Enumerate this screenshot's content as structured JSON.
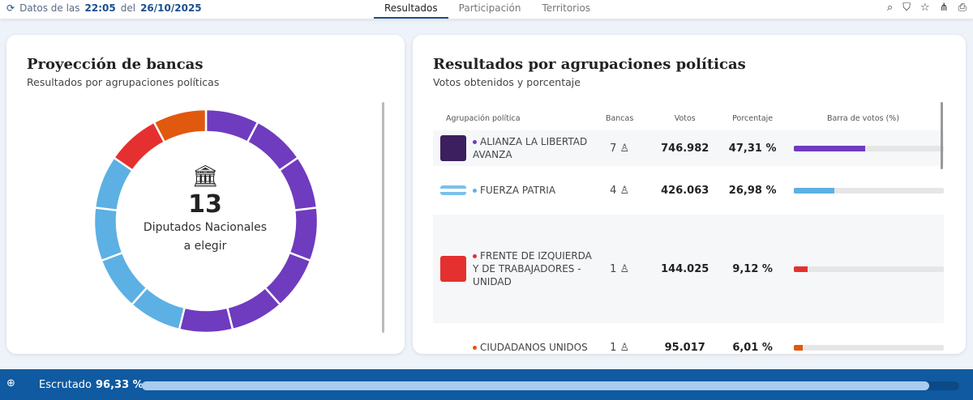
{
  "header": {
    "prefix": "Datos de las",
    "time": "22:05",
    "mid": "del",
    "date": "26/10/2025",
    "tabs": [
      "Resultados",
      "Participación",
      "Territorios"
    ]
  },
  "projection": {
    "title": "Proyección de bancas",
    "subtitle": "Resultados por agrupaciones políticas",
    "total": "13",
    "label1": "Diputados Nacionales",
    "label2": "a elegir"
  },
  "results": {
    "title": "Resultados por agrupaciones políticas",
    "subtitle": "Votos obtenidos y porcentaje",
    "columns": [
      "Agrupación política",
      "Bancas",
      "Votos",
      "Porcentaje",
      "Barra de votos (%)"
    ],
    "rows": [
      {
        "name": "ALIANZA LA LIBERTAD AVANZA",
        "seats": "7",
        "votes": "746.982",
        "pct": "47,31 %",
        "value": 47.31,
        "color": "#6f3bbf"
      },
      {
        "name": "FUERZA PATRIA",
        "seats": "4",
        "votes": "426.063",
        "pct": "26,98 %",
        "value": 26.98,
        "color": "#5cb0e4"
      },
      {
        "name": "FRENTE DE IZQUIERDA Y DE TRABAJADORES - UNIDAD",
        "seats": "1",
        "votes": "144.025",
        "pct": "9,12 %",
        "value": 9.12,
        "color": "#e4312f"
      },
      {
        "name": "CIUDADANOS UNIDOS",
        "seats": "1",
        "votes": "95.017",
        "pct": "6,01 %",
        "value": 6.01,
        "color": "#e0590f"
      }
    ]
  },
  "footer": {
    "label": "Escrutado",
    "value": "96,33 %",
    "fraction": 0.9633
  }
}
